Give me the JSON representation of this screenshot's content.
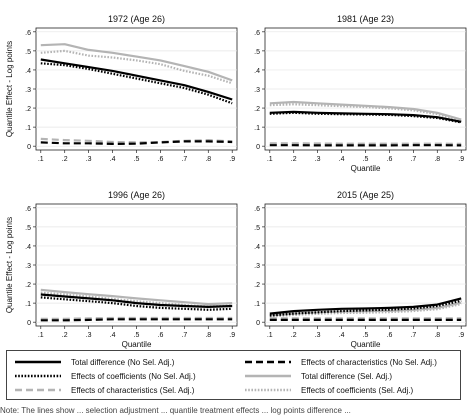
{
  "chart_data": [
    {
      "type": "line",
      "title": "1972 (Age 26)",
      "xlabel": "",
      "ylabel": "Quantile Effect - Log points",
      "ylim": [
        -0.02,
        0.62
      ],
      "xlim": [
        0.08,
        0.92
      ],
      "x": [
        0.1,
        0.2,
        0.3,
        0.4,
        0.5,
        0.6,
        0.7,
        0.8,
        0.9
      ],
      "series": [
        {
          "key": "total_nosel",
          "values": [
            0.455,
            0.435,
            0.415,
            0.395,
            0.37,
            0.345,
            0.32,
            0.285,
            0.245
          ]
        },
        {
          "key": "coef_nosel",
          "values": [
            0.435,
            0.425,
            0.405,
            0.38,
            0.355,
            0.33,
            0.305,
            0.27,
            0.225
          ]
        },
        {
          "key": "char_nosel",
          "values": [
            0.02,
            0.015,
            0.015,
            0.012,
            0.013,
            0.02,
            0.025,
            0.025,
            0.022
          ]
        },
        {
          "key": "total_sel",
          "values": [
            0.53,
            0.535,
            0.505,
            0.49,
            0.47,
            0.45,
            0.42,
            0.39,
            0.345
          ]
        },
        {
          "key": "char_sel",
          "values": [
            0.038,
            0.032,
            0.028,
            0.022,
            0.02,
            0.022,
            0.028,
            0.032,
            0.025
          ]
        },
        {
          "key": "coef_sel",
          "values": [
            0.49,
            0.5,
            0.475,
            0.465,
            0.45,
            0.43,
            0.395,
            0.37,
            0.33
          ]
        }
      ]
    },
    {
      "type": "line",
      "title": "1981 (Age 23)",
      "xlabel": "Quantile",
      "ylabel": "",
      "ylim": [
        -0.02,
        0.62
      ],
      "xlim": [
        0.08,
        0.92
      ],
      "x": [
        0.1,
        0.2,
        0.3,
        0.4,
        0.5,
        0.6,
        0.7,
        0.8,
        0.9
      ],
      "series": [
        {
          "key": "total_nosel",
          "values": [
            0.175,
            0.18,
            0.175,
            0.172,
            0.17,
            0.168,
            0.163,
            0.152,
            0.128
          ]
        },
        {
          "key": "coef_nosel",
          "values": [
            0.17,
            0.175,
            0.17,
            0.168,
            0.166,
            0.164,
            0.158,
            0.148,
            0.125
          ]
        },
        {
          "key": "char_nosel",
          "values": [
            0.005,
            0.005,
            0.004,
            0.004,
            0.004,
            0.004,
            0.005,
            0.005,
            0.004
          ]
        },
        {
          "key": "total_sel",
          "values": [
            0.225,
            0.232,
            0.225,
            0.218,
            0.212,
            0.205,
            0.195,
            0.175,
            0.14
          ]
        },
        {
          "key": "char_sel",
          "values": [
            0.015,
            0.015,
            0.014,
            0.013,
            0.013,
            0.013,
            0.013,
            0.013,
            0.012
          ]
        },
        {
          "key": "coef_sel",
          "values": [
            0.215,
            0.22,
            0.215,
            0.21,
            0.205,
            0.198,
            0.188,
            0.168,
            0.132
          ]
        }
      ]
    },
    {
      "type": "line",
      "title": "1996 (Age 26)",
      "xlabel": "Quantile",
      "ylabel": "Quantile Effect - Log points",
      "ylim": [
        -0.02,
        0.62
      ],
      "xlim": [
        0.08,
        0.92
      ],
      "x": [
        0.1,
        0.2,
        0.3,
        0.4,
        0.5,
        0.6,
        0.7,
        0.8,
        0.9
      ],
      "series": [
        {
          "key": "total_nosel",
          "values": [
            0.145,
            0.135,
            0.125,
            0.115,
            0.1,
            0.09,
            0.085,
            0.08,
            0.085
          ]
        },
        {
          "key": "coef_nosel",
          "values": [
            0.13,
            0.12,
            0.11,
            0.1,
            0.085,
            0.075,
            0.07,
            0.065,
            0.07
          ]
        },
        {
          "key": "char_nosel",
          "values": [
            0.01,
            0.01,
            0.012,
            0.015,
            0.015,
            0.015,
            0.015,
            0.015,
            0.015
          ]
        },
        {
          "key": "total_sel",
          "values": [
            0.17,
            0.158,
            0.147,
            0.137,
            0.125,
            0.115,
            0.105,
            0.095,
            0.1
          ]
        },
        {
          "key": "char_sel",
          "values": [
            0.018,
            0.018,
            0.02,
            0.022,
            0.022,
            0.022,
            0.022,
            0.022,
            0.022
          ]
        },
        {
          "key": "coef_sel",
          "values": [
            0.155,
            0.145,
            0.135,
            0.122,
            0.11,
            0.1,
            0.09,
            0.082,
            0.088
          ]
        }
      ]
    },
    {
      "type": "line",
      "title": "2015 (Age 25)",
      "xlabel": "Quantile",
      "ylabel": "",
      "ylim": [
        -0.02,
        0.62
      ],
      "xlim": [
        0.08,
        0.92
      ],
      "x": [
        0.1,
        0.2,
        0.3,
        0.4,
        0.5,
        0.6,
        0.7,
        0.8,
        0.9
      ],
      "series": [
        {
          "key": "total_nosel",
          "values": [
            0.045,
            0.058,
            0.065,
            0.07,
            0.072,
            0.075,
            0.08,
            0.092,
            0.125
          ]
        },
        {
          "key": "coef_nosel",
          "values": [
            0.035,
            0.045,
            0.052,
            0.058,
            0.062,
            0.066,
            0.072,
            0.085,
            0.112
          ]
        },
        {
          "key": "char_nosel",
          "values": [
            0.012,
            0.012,
            0.012,
            0.012,
            0.012,
            0.012,
            0.012,
            0.012,
            0.012
          ]
        },
        {
          "key": "total_sel",
          "values": [
            0.035,
            0.045,
            0.052,
            0.056,
            0.058,
            0.06,
            0.065,
            0.075,
            0.102
          ]
        },
        {
          "key": "char_sel",
          "values": [
            0.02,
            0.02,
            0.02,
            0.02,
            0.02,
            0.02,
            0.02,
            0.02,
            0.02
          ]
        },
        {
          "key": "coef_sel",
          "values": [
            0.03,
            0.038,
            0.044,
            0.048,
            0.05,
            0.053,
            0.058,
            0.068,
            0.095
          ]
        }
      ]
    }
  ],
  "axes": {
    "y_ticks": [
      0,
      0.1,
      0.2,
      0.3,
      0.4,
      0.5,
      0.6
    ],
    "y_tick_labels": [
      "0",
      ".1",
      ".2",
      ".3",
      ".4",
      ".5",
      ".6"
    ],
    "x_ticks": [
      0.1,
      0.2,
      0.3,
      0.4,
      0.5,
      0.6,
      0.7,
      0.8,
      0.9
    ],
    "x_tick_labels": [
      ".1",
      ".2",
      ".3",
      ".4",
      ".5",
      ".6",
      ".7",
      ".8",
      ".9"
    ]
  },
  "styles": {
    "total_nosel": {
      "color": "#000000",
      "dash": "",
      "width": 2.2
    },
    "coef_nosel": {
      "color": "#000000",
      "dash": "1.6 1.6",
      "width": 2.2
    },
    "char_nosel": {
      "color": "#000000",
      "dash": "7 4",
      "width": 2.2
    },
    "total_sel": {
      "color": "#b4b4b4",
      "dash": "",
      "width": 2.2
    },
    "char_sel": {
      "color": "#b4b4b4",
      "dash": "7 4",
      "width": 2.2
    },
    "coef_sel": {
      "color": "#b4b4b4",
      "dash": "1.6 1.6",
      "width": 2.2
    }
  },
  "legend": {
    "items": [
      {
        "key": "total_nosel",
        "label": "Total difference (No Sel. Adj.)"
      },
      {
        "key": "char_nosel",
        "label": "Effects of characteristics (No Sel. Adj.)"
      },
      {
        "key": "coef_nosel",
        "label": "Effects of coefficients (No Sel. Adj.)"
      },
      {
        "key": "total_sel",
        "label": "Total difference (Sel. Adj.)"
      },
      {
        "key": "char_sel",
        "label": "Effects of characteristics (Sel. Adj.)"
      },
      {
        "key": "coef_sel",
        "label": "Effects of coefficients (Sel. Adj.)"
      }
    ]
  },
  "caption": "Note: The lines show ... selection adjustment ... quantile treatment effects ... log points difference ..."
}
